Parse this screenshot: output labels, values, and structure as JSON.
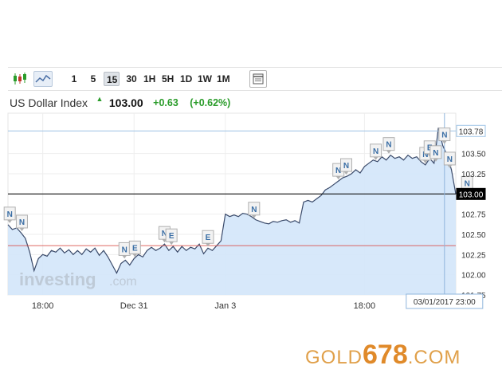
{
  "toolbar": {
    "icons": [
      {
        "name": "candlestick-chart-icon",
        "selected": false
      },
      {
        "name": "area-chart-icon",
        "selected": true
      }
    ],
    "timeframes": [
      "1",
      "5",
      "15",
      "30",
      "1H",
      "5H",
      "1D",
      "1W",
      "1M"
    ],
    "selected_timeframe": "15",
    "settings_icon": "chart-settings-icon"
  },
  "quote": {
    "title": "US Dollar Index",
    "direction_icon": "up-arrow-icon",
    "price": "103.00",
    "change": "+0.63",
    "change_pct": "(+0.62%)"
  },
  "watermark": {
    "text_main": "investing",
    "text_suffix": ".com"
  },
  "brand": {
    "gold": "GOLD",
    "number": "678",
    "com": ".COM"
  },
  "colors": {
    "line": "#3a4a6a",
    "fill": "#d3e6fa",
    "positive": "#2a9c2a",
    "high_line": "#9ec3e6",
    "low_line": "#d9534f",
    "brand": "#e08a2a"
  },
  "chart_data": {
    "type": "area",
    "title": "US Dollar Index",
    "xlabel": "",
    "ylabel": "",
    "ylim": [
      101.75,
      104.0
    ],
    "x_ticks": [
      {
        "label": "18:00",
        "x": 4
      },
      {
        "label": "Dec 31",
        "x": 14.5
      },
      {
        "label": "Jan 3",
        "x": 25
      },
      {
        "label": "18:00",
        "x": 41
      }
    ],
    "y_ticks": [
      "101.75",
      "102.00",
      "102.25",
      "102.50",
      "102.75",
      "103.00",
      "103.25",
      "103.50",
      "103.78"
    ],
    "y_tick_values": [
      101.75,
      102.0,
      102.25,
      102.5,
      102.75,
      103.0,
      103.25,
      103.5
    ],
    "series": [
      {
        "x": [
          0,
          0.5,
          1,
          1.5,
          2,
          2.5,
          3,
          3.5,
          4,
          4.5,
          5,
          5.5,
          6,
          6.5,
          7,
          7.5,
          8,
          8.5,
          9,
          9.5,
          10,
          10.5,
          11,
          11.5,
          12,
          12.5,
          13,
          13.5,
          14,
          14.5,
          15,
          15.5,
          16,
          16.5,
          17,
          17.5,
          18,
          18.5,
          19,
          19.5,
          20,
          20.5,
          21,
          21.5,
          22,
          22.5,
          23,
          23.5,
          24,
          24.5,
          25,
          25.5,
          26,
          26.5,
          27,
          27.5,
          28,
          28.5,
          29,
          29.5,
          30,
          30.5,
          31,
          31.5,
          32,
          32.5,
          33,
          33.5,
          34,
          34.5,
          35,
          35.5,
          36,
          36.5,
          37,
          37.5,
          38,
          38.5,
          39,
          39.5,
          40,
          40.5,
          41,
          41.5,
          42,
          42.5,
          43,
          43.5,
          44,
          44.5,
          45,
          45.5,
          46,
          46.5,
          47,
          47.5,
          48,
          48.5,
          49,
          49.5,
          50,
          50.5,
          51,
          51.5
        ],
        "values": [
          102.62,
          102.56,
          102.58,
          102.52,
          102.45,
          102.28,
          102.05,
          102.2,
          102.25,
          102.23,
          102.3,
          102.28,
          102.33,
          102.27,
          102.31,
          102.25,
          102.3,
          102.25,
          102.32,
          102.28,
          102.33,
          102.24,
          102.3,
          102.22,
          102.12,
          102.02,
          102.14,
          102.18,
          102.12,
          102.2,
          102.25,
          102.22,
          102.3,
          102.34,
          102.3,
          102.33,
          102.38,
          102.3,
          102.35,
          102.28,
          102.35,
          102.3,
          102.34,
          102.32,
          102.38,
          102.26,
          102.33,
          102.3,
          102.36,
          102.42,
          102.75,
          102.72,
          102.74,
          102.72,
          102.76,
          102.75,
          102.72,
          102.68,
          102.66,
          102.64,
          102.63,
          102.66,
          102.65,
          102.67,
          102.68,
          102.65,
          102.67,
          102.64,
          102.9,
          102.92,
          102.9,
          102.94,
          102.98,
          103.05,
          103.08,
          103.12,
          103.16,
          103.2,
          103.22,
          103.25,
          103.3,
          103.26,
          103.34,
          103.38,
          103.42,
          103.4,
          103.46,
          103.42,
          103.48,
          103.44,
          103.46,
          103.42,
          103.48,
          103.44,
          103.46,
          103.4,
          103.36,
          103.44,
          103.38,
          103.82,
          103.6,
          103.48,
          103.3,
          103.0
        ]
      }
    ],
    "reference_lines": [
      {
        "label": "103.78",
        "value": 103.78
      },
      {
        "label": "103.00",
        "value": 103.0
      },
      {
        "value": 102.36
      }
    ],
    "markers": [
      {
        "label": "N",
        "x": 0.2
      },
      {
        "label": "N",
        "x": 1.6
      },
      {
        "label": "N",
        "x": 13.4
      },
      {
        "label": "E",
        "x": 14.6
      },
      {
        "label": "N",
        "x": 18.0
      },
      {
        "label": "E",
        "x": 18.8
      },
      {
        "label": "E",
        "x": 23.0
      },
      {
        "label": "N",
        "x": 28.3
      },
      {
        "label": "N",
        "x": 38.0
      },
      {
        "label": "N",
        "x": 38.9
      },
      {
        "label": "N",
        "x": 42.3
      },
      {
        "label": "N",
        "x": 43.8
      },
      {
        "label": "N",
        "x": 48.0
      },
      {
        "label": "E",
        "x": 48.5
      },
      {
        "label": "N",
        "x": 49.2
      },
      {
        "label": "N",
        "x": 50.2
      },
      {
        "label": "N",
        "x": 50.8
      },
      {
        "label": "N",
        "x": 52.8
      }
    ],
    "crosshair": {
      "x": 50.2,
      "label": "03/01/2017 23:00"
    },
    "grid": true,
    "legend": "none"
  }
}
